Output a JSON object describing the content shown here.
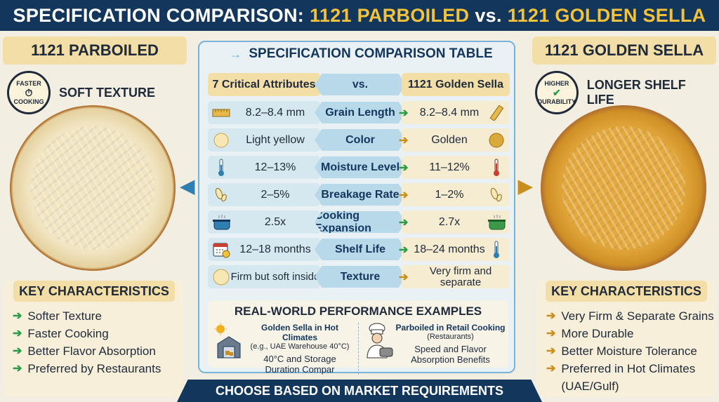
{
  "title": {
    "prefix": "SPECIFICATION COMPARISON:",
    "left_product": "1121 PARBOILED",
    "vs": "vs.",
    "right_product": "1121 GOLDEN SELLA"
  },
  "left_panel": {
    "heading": "1121 PARBOILED",
    "badge_top": "FASTER",
    "badge_bottom": "COOKING",
    "badge_label": "SOFT TEXTURE",
    "key_heading": "KEY CHARACTERISTICS",
    "key_items": [
      "Softer Texture",
      "Faster Cooking",
      "Better Flavor Absorption",
      "Preferred by Restaurants"
    ]
  },
  "right_panel": {
    "heading": "1121 GOLDEN SELLA",
    "badge_top": "HIGHER",
    "badge_bottom": "DURABILITY",
    "badge_label": "LONGER SHELF LIFE",
    "key_heading": "KEY CHARACTERISTICS",
    "key_items": [
      "Very Firm & Separate Grains",
      "More Durable",
      "Better Moisture Tolerance",
      "Preferred in Hot Climates (UAE/Gulf)"
    ]
  },
  "table": {
    "title": "SPECIFICATION COMPARISON TABLE",
    "header": {
      "left": "7 Critical Attributes",
      "middle": "vs.",
      "right": "1121 Golden Sella"
    },
    "rows": [
      {
        "attribute": "Grain Length",
        "parboiled": "8.2–8.4 mm",
        "golden": "8.2–8.4 mm",
        "icon": "ruler-icon"
      },
      {
        "attribute": "Color",
        "parboiled": "Light yellow",
        "golden": "Golden",
        "icon": "color-swatch-icon"
      },
      {
        "attribute": "Moisture Level",
        "parboiled": "12–13%",
        "golden": "11–12%",
        "icon": "thermometer-icon"
      },
      {
        "attribute": "Breakage Rate",
        "parboiled": "2–5%",
        "golden": "1–2%",
        "icon": "broken-grain-icon"
      },
      {
        "attribute": "Cooking Expansion",
        "parboiled": "2.5x",
        "golden": "2.7x",
        "icon": "cooking-pot-icon"
      },
      {
        "attribute": "Shelf Life",
        "parboiled": "12–18 months",
        "golden": "18–24 months",
        "icon": "calendar-icon"
      },
      {
        "attribute": "Texture",
        "parboiled": "Firm but soft inside",
        "golden": "Very firm and separate",
        "icon": "grain-texture-icon"
      }
    ]
  },
  "performance": {
    "title": "REAL-WORLD PERFORMANCE EXAMPLES",
    "left": {
      "heading": "Golden Sella in Hot Climates",
      "sub": "(e.g., UAE Warehouse 40°C)",
      "detail_1": "40°C and Storage",
      "detail_2": "Duration Compar"
    },
    "right": {
      "heading": "Parboiled in Retail Cooking",
      "sub": "(Restaurants)",
      "detail_1": "Speed and Flavor",
      "detail_2": "Absorption Benefits"
    }
  },
  "footer": "CHOOSE BASED ON MARKET REQUIREMENTS",
  "colors": {
    "navy": "#13365c",
    "gold": "#f2c23a",
    "green": "#2a9d4a",
    "amber": "#c98e1c"
  }
}
